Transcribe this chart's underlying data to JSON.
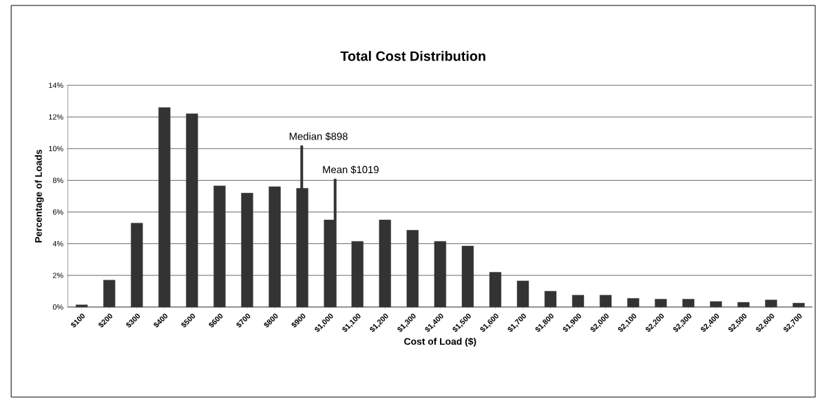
{
  "chart_data": {
    "type": "bar",
    "title": "Total Cost Distribution",
    "xlabel": "Cost of Load ($)",
    "ylabel": "Percentage of Loads",
    "x": [
      100,
      200,
      300,
      400,
      500,
      600,
      700,
      800,
      900,
      1000,
      1100,
      1200,
      1300,
      1400,
      1500,
      1600,
      1700,
      1800,
      1900,
      2000,
      2100,
      2200,
      2300,
      2400,
      2500,
      2600,
      2700
    ],
    "values": [
      0.14,
      1.7,
      5.3,
      12.6,
      12.2,
      7.65,
      7.2,
      7.6,
      7.5,
      5.5,
      4.15,
      5.5,
      4.85,
      4.15,
      3.85,
      2.2,
      1.65,
      1.0,
      0.75,
      0.75,
      0.55,
      0.5,
      0.5,
      0.35,
      0.3,
      0.45,
      0.25
    ],
    "color": "#333333",
    "xlim": [
      50,
      2750
    ],
    "ylim": [
      0,
      14
    ],
    "xticks": [
      {
        "value": 100,
        "label": "$100"
      },
      {
        "value": 200,
        "label": "$200"
      },
      {
        "value": 300,
        "label": "$300"
      },
      {
        "value": 400,
        "label": "$400"
      },
      {
        "value": 500,
        "label": "$500"
      },
      {
        "value": 600,
        "label": "$600"
      },
      {
        "value": 700,
        "label": "$700"
      },
      {
        "value": 800,
        "label": "$800"
      },
      {
        "value": 900,
        "label": "$900"
      },
      {
        "value": 1000,
        "label": "$1,000"
      },
      {
        "value": 1100,
        "label": "$1,100"
      },
      {
        "value": 1200,
        "label": "$1,200"
      },
      {
        "value": 1300,
        "label": "$1,300"
      },
      {
        "value": 1400,
        "label": "$1,400"
      },
      {
        "value": 1500,
        "label": "$1,500"
      },
      {
        "value": 1600,
        "label": "$1,600"
      },
      {
        "value": 1700,
        "label": "$1,700"
      },
      {
        "value": 1800,
        "label": "$1,800"
      },
      {
        "value": 1900,
        "label": "$1,900"
      },
      {
        "value": 2000,
        "label": "$2,000"
      },
      {
        "value": 2100,
        "label": "$2,100"
      },
      {
        "value": 2200,
        "label": "$2,200"
      },
      {
        "value": 2300,
        "label": "$2,300"
      },
      {
        "value": 2400,
        "label": "$2,400"
      },
      {
        "value": 2500,
        "label": "$2,500"
      },
      {
        "value": 2600,
        "label": "$2,600"
      },
      {
        "value": 2700,
        "label": "$2,700"
      }
    ],
    "yticks": [
      {
        "value": 0,
        "label": "0%"
      },
      {
        "value": 2,
        "label": "2%"
      },
      {
        "value": 4,
        "label": "4%"
      },
      {
        "value": 6,
        "label": "6%"
      },
      {
        "value": 8,
        "label": "8%"
      },
      {
        "value": 10,
        "label": "10%"
      },
      {
        "value": 12,
        "label": "12%"
      },
      {
        "value": 14,
        "label": "14%"
      }
    ],
    "grid": "y",
    "ref_lines": [
      {
        "axis": "x",
        "value": 898,
        "color": "#333333"
      },
      {
        "axis": "x",
        "value": 1019,
        "color": "#333333"
      }
    ],
    "annotations": [
      {
        "text": "Median $898",
        "x": 898,
        "y": 10.2
      },
      {
        "text": "Mean $1019",
        "x": 1019,
        "y": 8.1
      }
    ]
  }
}
